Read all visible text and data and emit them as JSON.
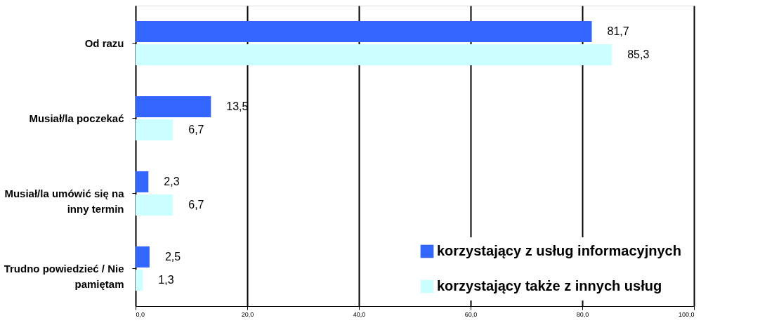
{
  "chart_data": {
    "type": "bar",
    "orientation": "horizontal",
    "categories": [
      "Od razu",
      "Musiał/la poczekać",
      "Musiał/la umówić się na inny termin",
      "Trudno powiedzieć / Nie pamiętam"
    ],
    "series": [
      {
        "name": "korzystający z usług informacyjnych",
        "color": "#3366ff",
        "values": [
          81.7,
          13.5,
          2.3,
          2.5
        ],
        "value_labels": [
          "81,7",
          "13,5",
          "2,3",
          "2,5"
        ]
      },
      {
        "name": "korzystający także z innych usług",
        "color": "#ccffff",
        "values": [
          85.3,
          6.7,
          6.7,
          1.3
        ],
        "value_labels": [
          "85,3",
          "6,7",
          "6,7",
          "1,3"
        ]
      }
    ],
    "xlim": [
      0,
      100
    ],
    "xticks": [
      {
        "value": 0,
        "label": "0,0"
      },
      {
        "value": 20,
        "label": "20,0"
      },
      {
        "value": 40,
        "label": "40,0"
      },
      {
        "value": 60,
        "label": "60,0"
      },
      {
        "value": 80,
        "label": "80,0"
      },
      {
        "value": 100,
        "label": "100,0"
      }
    ],
    "grid": "x",
    "legend": "bottom right"
  }
}
